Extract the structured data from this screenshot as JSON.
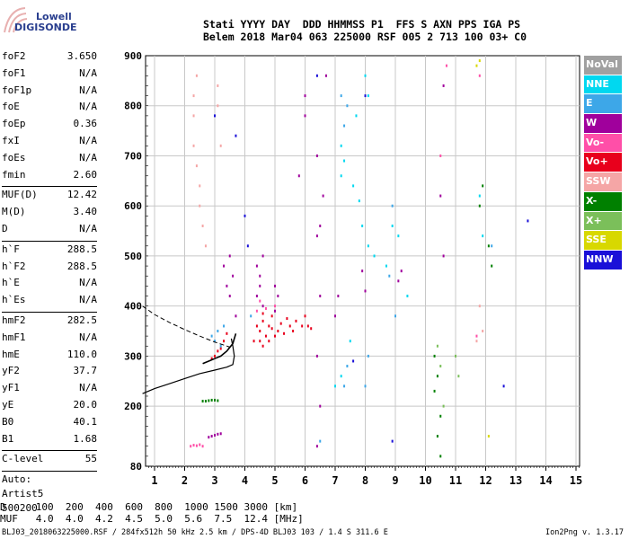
{
  "logo": {
    "line1": "Lowell",
    "line2": "DIGISONDE"
  },
  "header": {
    "labels": "Stati YYYY DAY  DDD HHMMSS P1  FFS S AXN PPS IGA PS",
    "values": "Belem 2018 Mar04 063 225000 RSF 005 2 713 100 03+ C0"
  },
  "params": {
    "group1": [
      {
        "k": "foF2",
        "v": "3.650"
      },
      {
        "k": "foF1",
        "v": "N/A"
      },
      {
        "k": "foF1p",
        "v": "N/A"
      },
      {
        "k": "foE",
        "v": "N/A"
      },
      {
        "k": "foEp",
        "v": "0.36"
      },
      {
        "k": "fxI",
        "v": "N/A"
      },
      {
        "k": "foEs",
        "v": "N/A"
      },
      {
        "k": "fmin",
        "v": "2.60"
      }
    ],
    "group2": [
      {
        "k": "MUF(D)",
        "v": "12.42"
      },
      {
        "k": "M(D)",
        "v": "3.40"
      },
      {
        "k": "D",
        "v": "N/A"
      }
    ],
    "group3": [
      {
        "k": "h`F",
        "v": "288.5"
      },
      {
        "k": "h`F2",
        "v": "288.5"
      },
      {
        "k": "h`E",
        "v": "N/A"
      },
      {
        "k": "h`Es",
        "v": "N/A"
      }
    ],
    "group4": [
      {
        "k": "hmF2",
        "v": "282.5"
      },
      {
        "k": "hmF1",
        "v": "N/A"
      },
      {
        "k": "hmE",
        "v": "110.0"
      },
      {
        "k": "yF2",
        "v": "37.7"
      },
      {
        "k": "yF1",
        "v": "N/A"
      },
      {
        "k": "yE",
        "v": "20.0"
      },
      {
        "k": "B0",
        "v": "40.1"
      },
      {
        "k": "B1",
        "v": "1.68"
      }
    ],
    "group5": [
      {
        "k": "C-level",
        "v": "55"
      }
    ],
    "auto": [
      "Auto:",
      "Artist5",
      "500200"
    ]
  },
  "legend": [
    {
      "label": "NoVal",
      "color": "#a0a0a0"
    },
    {
      "label": "NNE",
      "color": "#00d8f0"
    },
    {
      "label": "E",
      "color": "#3da7e8"
    },
    {
      "label": "W",
      "color": "#a0009c"
    },
    {
      "label": "Vo-",
      "color": "#ff4fa8"
    },
    {
      "label": "Vo+",
      "color": "#e8001c"
    },
    {
      "label": "SSW",
      "color": "#f5a6a6"
    },
    {
      "label": "X-",
      "color": "#008000"
    },
    {
      "label": "X+",
      "color": "#7bbf5a"
    },
    {
      "label": "SSE",
      "color": "#d8d800"
    },
    {
      "label": "NNW",
      "color": "#1a10d8"
    }
  ],
  "footer": {
    "line1": "D     100  200  400  600  800  1000 1500 3000 [km]",
    "line2": "MUF   4.0  4.0  4.2  4.5  5.0  5.6  7.5  12.4 [MHz]",
    "file": "BLJ03_2018063225000.RSF / 284fx512h 50 kHz 2.5 km / DPS-4D BLJ03 103 / 1.4 S 311.6 E",
    "version": "Ion2Png v. 1.3.17"
  },
  "chart_data": {
    "type": "scatter",
    "title": "",
    "xlabel": "",
    "ylabel": "",
    "xlim": [
      0.6,
      15.2
    ],
    "ylim": [
      80,
      900
    ],
    "xticks": [
      1,
      2,
      3,
      4,
      5,
      6,
      7,
      8,
      9,
      10,
      11,
      12,
      13,
      14,
      15
    ],
    "yticks": [
      80,
      200,
      300,
      400,
      500,
      600,
      700,
      800,
      900
    ],
    "grid": true,
    "profile": [
      {
        "x": 0.6,
        "y": 225
      },
      {
        "x": 1.0,
        "y": 235
      },
      {
        "x": 1.5,
        "y": 245
      },
      {
        "x": 2.0,
        "y": 255
      },
      {
        "x": 2.5,
        "y": 265
      },
      {
        "x": 3.0,
        "y": 272
      },
      {
        "x": 3.4,
        "y": 278
      },
      {
        "x": 3.6,
        "y": 283
      },
      {
        "x": 3.65,
        "y": 300
      },
      {
        "x": 3.6,
        "y": 320
      },
      {
        "x": 3.55,
        "y": 335
      }
    ],
    "trace": [
      {
        "x": 2.6,
        "y": 285
      },
      {
        "x": 2.8,
        "y": 290
      },
      {
        "x": 3.0,
        "y": 295
      },
      {
        "x": 3.2,
        "y": 300
      },
      {
        "x": 3.4,
        "y": 310
      },
      {
        "x": 3.6,
        "y": 325
      },
      {
        "x": 3.7,
        "y": 345
      }
    ],
    "dashed": [
      {
        "x": 0.6,
        "y": 400
      },
      {
        "x": 1.0,
        "y": 383
      },
      {
        "x": 1.5,
        "y": 367
      },
      {
        "x": 2.0,
        "y": 353
      },
      {
        "x": 2.5,
        "y": 340
      },
      {
        "x": 3.0,
        "y": 328
      },
      {
        "x": 3.5,
        "y": 318
      }
    ],
    "series": [
      {
        "name": "W",
        "color": "#a0009c",
        "points": [
          [
            2.9,
            140
          ],
          [
            3.0,
            142
          ],
          [
            3.1,
            144
          ],
          [
            3.2,
            145
          ],
          [
            2.8,
            138
          ],
          [
            3.3,
            480
          ],
          [
            3.4,
            440
          ],
          [
            3.5,
            420
          ],
          [
            3.6,
            460
          ],
          [
            3.5,
            500
          ],
          [
            3.7,
            380
          ],
          [
            4.4,
            420
          ],
          [
            4.5,
            440
          ],
          [
            4.6,
            400
          ],
          [
            4.5,
            460
          ],
          [
            4.4,
            480
          ],
          [
            4.6,
            500
          ],
          [
            5.0,
            390
          ],
          [
            5.1,
            420
          ],
          [
            5.0,
            440
          ],
          [
            6.0,
            780
          ],
          [
            6.0,
            820
          ],
          [
            5.8,
            660
          ],
          [
            6.6,
            620
          ],
          [
            6.7,
            860
          ],
          [
            6.5,
            560
          ],
          [
            10.6,
            840
          ],
          [
            10.5,
            620
          ],
          [
            10.6,
            500
          ],
          [
            7.0,
            380
          ],
          [
            7.1,
            420
          ],
          [
            7.9,
            470
          ],
          [
            8.0,
            430
          ],
          [
            9.2,
            470
          ],
          [
            9.1,
            450
          ],
          [
            6.4,
            700
          ],
          [
            6.4,
            540
          ],
          [
            6.5,
            420
          ],
          [
            6.4,
            300
          ],
          [
            6.5,
            200
          ],
          [
            6.4,
            120
          ]
        ]
      },
      {
        "name": "Vo+",
        "color": "#e8001c",
        "points": [
          [
            3.0,
            300
          ],
          [
            3.1,
            310
          ],
          [
            2.9,
            295
          ],
          [
            3.2,
            315
          ],
          [
            3.3,
            330
          ],
          [
            3.4,
            345
          ],
          [
            4.4,
            360
          ],
          [
            4.5,
            350
          ],
          [
            4.6,
            370
          ],
          [
            4.7,
            340
          ],
          [
            4.8,
            360
          ],
          [
            4.9,
            380
          ],
          [
            5.1,
            350
          ],
          [
            5.2,
            365
          ],
          [
            5.3,
            345
          ],
          [
            5.5,
            360
          ],
          [
            5.7,
            370
          ],
          [
            5.9,
            360
          ],
          [
            6.0,
            380
          ],
          [
            6.2,
            355
          ],
          [
            4.3,
            330
          ],
          [
            4.5,
            330
          ],
          [
            4.6,
            385
          ],
          [
            5.0,
            340
          ],
          [
            5.4,
            375
          ],
          [
            4.8,
            330
          ],
          [
            4.9,
            355
          ],
          [
            5.6,
            350
          ],
          [
            6.1,
            360
          ],
          [
            4.6,
            320
          ]
        ]
      },
      {
        "name": "Vo-",
        "color": "#ff4fa8",
        "points": [
          [
            2.2,
            120
          ],
          [
            2.3,
            122
          ],
          [
            2.4,
            121
          ],
          [
            2.5,
            123
          ],
          [
            2.6,
            120
          ],
          [
            4.5,
            410
          ],
          [
            4.4,
            390
          ],
          [
            4.7,
            395
          ],
          [
            5.0,
            400
          ],
          [
            10.5,
            700
          ],
          [
            11.7,
            340
          ],
          [
            10.7,
            880
          ],
          [
            11.8,
            860
          ]
        ]
      },
      {
        "name": "SSW",
        "color": "#f5a6a6",
        "points": [
          [
            2.3,
            820
          ],
          [
            2.4,
            860
          ],
          [
            2.3,
            780
          ],
          [
            3.1,
            840
          ],
          [
            3.1,
            800
          ],
          [
            2.3,
            720
          ],
          [
            2.4,
            680
          ],
          [
            3.2,
            720
          ],
          [
            2.5,
            640
          ],
          [
            2.5,
            600
          ],
          [
            2.6,
            560
          ],
          [
            11.8,
            400
          ],
          [
            11.9,
            350
          ],
          [
            11.7,
            330
          ],
          [
            2.7,
            520
          ]
        ]
      },
      {
        "name": "NNE",
        "color": "#00d8f0",
        "points": [
          [
            7.2,
            720
          ],
          [
            7.3,
            690
          ],
          [
            7.2,
            660
          ],
          [
            7.6,
            640
          ],
          [
            7.8,
            610
          ],
          [
            7.9,
            560
          ],
          [
            8.1,
            520
          ],
          [
            8.3,
            500
          ],
          [
            8.7,
            480
          ],
          [
            8.9,
            560
          ],
          [
            9.1,
            540
          ],
          [
            9.4,
            420
          ],
          [
            7.5,
            330
          ],
          [
            7.2,
            260
          ],
          [
            7.0,
            240
          ],
          [
            7.7,
            780
          ],
          [
            8.1,
            820
          ],
          [
            8.0,
            860
          ],
          [
            11.8,
            620
          ],
          [
            11.9,
            540
          ]
        ]
      },
      {
        "name": "E",
        "color": "#3da7e8",
        "points": [
          [
            3.0,
            330
          ],
          [
            3.1,
            350
          ],
          [
            2.9,
            340
          ],
          [
            3.2,
            320
          ],
          [
            3.3,
            360
          ],
          [
            4.2,
            380
          ],
          [
            7.2,
            820
          ],
          [
            7.4,
            800
          ],
          [
            7.3,
            760
          ],
          [
            8.9,
            600
          ],
          [
            8.8,
            460
          ],
          [
            9.0,
            380
          ],
          [
            7.4,
            280
          ],
          [
            7.3,
            240
          ],
          [
            8.0,
            240
          ],
          [
            8.1,
            300
          ],
          [
            6.5,
            130
          ],
          [
            12.2,
            520
          ]
        ]
      },
      {
        "name": "X-",
        "color": "#008000",
        "points": [
          [
            2.6,
            210
          ],
          [
            2.7,
            210
          ],
          [
            2.8,
            211
          ],
          [
            2.9,
            212
          ],
          [
            3.0,
            212
          ],
          [
            3.1,
            211
          ],
          [
            10.3,
            300
          ],
          [
            10.4,
            260
          ],
          [
            10.3,
            230
          ],
          [
            10.5,
            180
          ],
          [
            10.4,
            140
          ],
          [
            10.5,
            100
          ],
          [
            12.1,
            520
          ],
          [
            12.2,
            480
          ],
          [
            11.8,
            600
          ],
          [
            11.9,
            640
          ]
        ]
      },
      {
        "name": "X+",
        "color": "#7bbf5a",
        "points": [
          [
            10.4,
            320
          ],
          [
            10.5,
            280
          ],
          [
            10.6,
            200
          ],
          [
            11.0,
            300
          ],
          [
            11.1,
            260
          ]
        ]
      },
      {
        "name": "SSE",
        "color": "#d8d800",
        "points": [
          [
            11.7,
            880
          ],
          [
            11.8,
            890
          ],
          [
            12.1,
            140
          ]
        ]
      },
      {
        "name": "NNW",
        "color": "#1a10d8",
        "points": [
          [
            3.7,
            740
          ],
          [
            4.0,
            580
          ],
          [
            4.1,
            520
          ],
          [
            6.4,
            860
          ],
          [
            8.0,
            820
          ],
          [
            13.4,
            570
          ],
          [
            12.6,
            240
          ],
          [
            8.9,
            130
          ],
          [
            7.6,
            290
          ],
          [
            3.0,
            780
          ]
        ]
      }
    ]
  }
}
